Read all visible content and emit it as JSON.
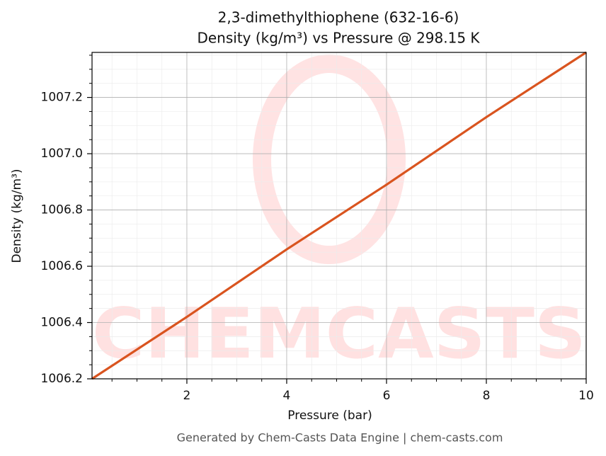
{
  "chart_data": {
    "type": "line",
    "title": "2,3-dimethylthiophene (632-16-6)",
    "subtitle": "Density (kg/m³) vs Pressure @ 298.15 K",
    "x_label": "Pressure (bar)",
    "y_label": "Density (kg/m³)",
    "footer": "Generated by Chem-Casts Data Engine | chem-casts.com",
    "watermark": "CHEMCASTS",
    "x": [
      0.1,
      2,
      4,
      6,
      8,
      10
    ],
    "series": [
      {
        "name": "Density",
        "color": "#d9541f",
        "values": [
          1006.2,
          1006.42,
          1006.66,
          1006.89,
          1007.13,
          1007.36
        ]
      }
    ],
    "xlim": [
      0.1,
      10
    ],
    "ylim": [
      1006.2,
      1007.36
    ],
    "xticks": [
      2,
      4,
      6,
      8,
      10
    ],
    "yticks": [
      1006.2,
      1006.4,
      1006.6,
      1006.8,
      {
        "value": 1007,
        "label": "1007.0"
      },
      1007.2
    ],
    "xminorticks": [
      0.5,
      1,
      1.5,
      2.5,
      3,
      3.5,
      4.5,
      5,
      5.5,
      6.5,
      7,
      7.5,
      8.5,
      9,
      9.5
    ],
    "yminorticks": [
      1006.25,
      1006.3,
      1006.35,
      1006.45,
      1006.5,
      1006.55,
      1006.65,
      1006.7,
      1006.75,
      1006.85,
      1006.9,
      1006.95,
      1007.05,
      1007.1,
      1007.15,
      1007.25,
      1007.3,
      1007.35
    ],
    "grid": true
  }
}
